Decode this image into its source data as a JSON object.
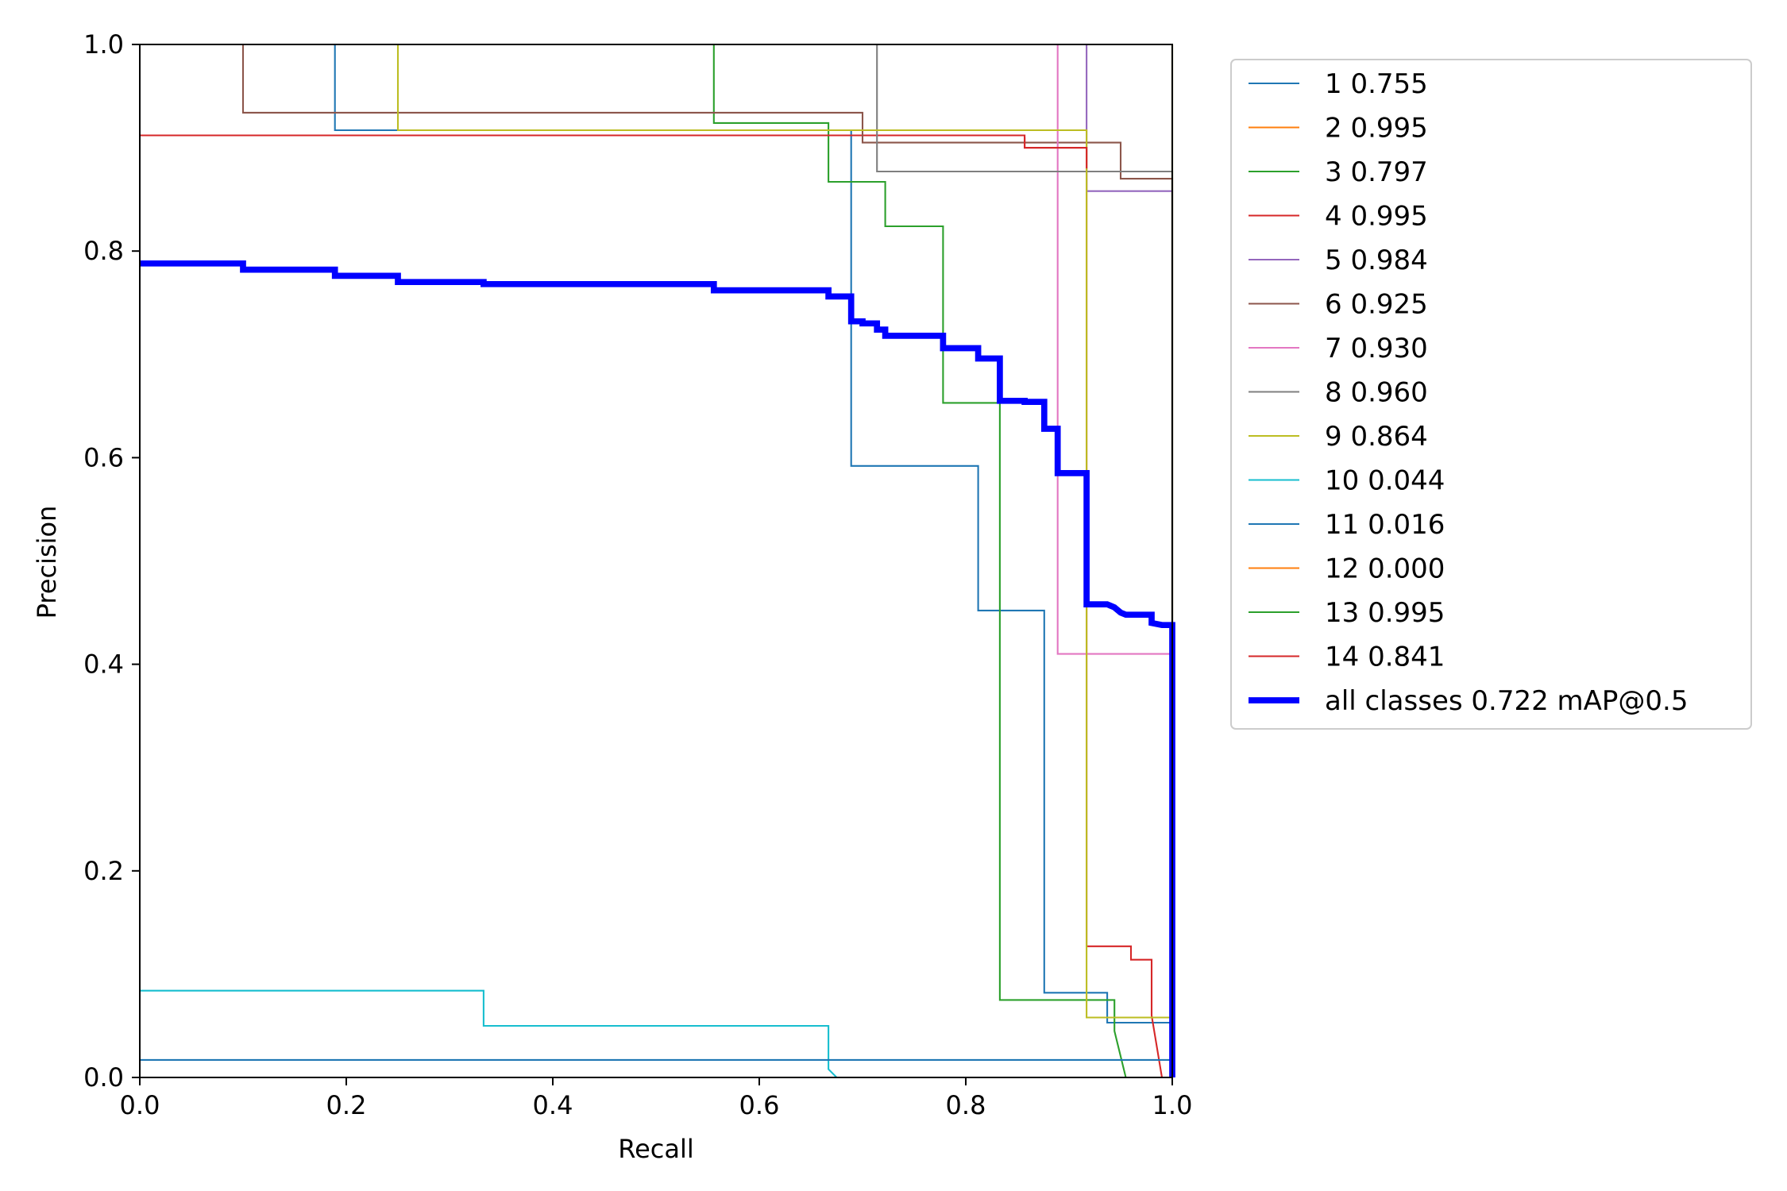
{
  "chart_data": {
    "type": "line",
    "title": "",
    "xlabel": "Recall",
    "ylabel": "Precision",
    "xlim": [
      0,
      1
    ],
    "ylim": [
      0,
      1
    ],
    "grid": false,
    "legend_position": "outside-right-top",
    "x_ticks": [
      "0.0",
      "0.2",
      "0.4",
      "0.6",
      "0.8",
      "1.0"
    ],
    "y_ticks": [
      "0.0",
      "0.2",
      "0.4",
      "0.6",
      "0.8",
      "1.0"
    ],
    "series": [
      {
        "name": "1 0.755",
        "color": "#1f77b4",
        "linewidth": 1.5,
        "points": [
          [
            0.189,
            1.0
          ],
          [
            0.189,
            0.917
          ],
          [
            0.25,
            0.917
          ],
          [
            0.25,
            0.917
          ],
          [
            0.689,
            0.917
          ],
          [
            0.689,
            0.592
          ],
          [
            0.812,
            0.592
          ],
          [
            0.812,
            0.452
          ],
          [
            0.876,
            0.452
          ],
          [
            0.876,
            0.082
          ],
          [
            0.937,
            0.082
          ],
          [
            0.937,
            0.053
          ],
          [
            1.0,
            0.053
          ],
          [
            1.0,
            0.0
          ]
        ]
      },
      {
        "name": "2 0.995",
        "color": "#ff7f0e",
        "linewidth": 1.5,
        "points": [
          [
            1.0,
            1.0
          ],
          [
            1.0,
            0.0
          ]
        ]
      },
      {
        "name": "3 0.797",
        "color": "#2ca02c",
        "linewidth": 1.5,
        "points": [
          [
            0.556,
            1.0
          ],
          [
            0.556,
            0.924
          ],
          [
            0.667,
            0.924
          ],
          [
            0.667,
            0.867
          ],
          [
            0.722,
            0.867
          ],
          [
            0.722,
            0.824
          ],
          [
            0.778,
            0.824
          ],
          [
            0.778,
            0.653
          ],
          [
            0.833,
            0.653
          ],
          [
            0.833,
            0.075
          ],
          [
            0.944,
            0.075
          ],
          [
            0.944,
            0.045
          ],
          [
            0.955,
            0.0
          ]
        ]
      },
      {
        "name": "4 0.995",
        "color": "#d62728",
        "linewidth": 1.5,
        "points": [
          [
            0.0,
            0.912
          ],
          [
            0.857,
            0.912
          ],
          [
            0.857,
            0.9
          ],
          [
            0.917,
            0.9
          ],
          [
            0.917,
            0.127
          ],
          [
            0.96,
            0.127
          ],
          [
            0.96,
            0.114
          ],
          [
            0.98,
            0.114
          ],
          [
            0.98,
            0.06
          ],
          [
            0.99,
            0.0
          ]
        ]
      },
      {
        "name": "5 0.984",
        "color": "#9467bd",
        "linewidth": 1.5,
        "points": [
          [
            0.917,
            1.0
          ],
          [
            0.917,
            0.858
          ],
          [
            1.0,
            0.858
          ],
          [
            1.0,
            0.0
          ]
        ]
      },
      {
        "name": "6 0.925",
        "color": "#8c564b",
        "linewidth": 1.5,
        "points": [
          [
            0.1,
            1.0
          ],
          [
            0.1,
            0.934
          ],
          [
            0.7,
            0.934
          ],
          [
            0.7,
            0.905
          ],
          [
            0.95,
            0.905
          ],
          [
            0.95,
            0.87
          ],
          [
            1.0,
            0.87
          ],
          [
            1.0,
            0.0
          ]
        ]
      },
      {
        "name": "7 0.930",
        "color": "#e377c2",
        "linewidth": 1.5,
        "points": [
          [
            0.889,
            1.0
          ],
          [
            0.889,
            0.41
          ],
          [
            1.0,
            0.41
          ],
          [
            1.0,
            0.0
          ]
        ]
      },
      {
        "name": "8 0.960",
        "color": "#7f7f7f",
        "linewidth": 1.5,
        "points": [
          [
            0.714,
            1.0
          ],
          [
            0.714,
            0.877
          ],
          [
            1.0,
            0.877
          ],
          [
            1.0,
            0.0
          ]
        ]
      },
      {
        "name": "9 0.864",
        "color": "#bcbd22",
        "linewidth": 1.5,
        "points": [
          [
            0.25,
            1.0
          ],
          [
            0.25,
            0.917
          ],
          [
            0.917,
            0.917
          ],
          [
            0.917,
            0.058
          ],
          [
            1.0,
            0.058
          ],
          [
            1.0,
            0.0
          ]
        ]
      },
      {
        "name": "10 0.044",
        "color": "#17becf",
        "linewidth": 1.5,
        "points": [
          [
            0.0,
            0.084
          ],
          [
            0.333,
            0.084
          ],
          [
            0.333,
            0.05
          ],
          [
            0.667,
            0.05
          ],
          [
            0.667,
            0.008
          ],
          [
            0.675,
            0.0
          ]
        ]
      },
      {
        "name": "11 0.016",
        "color": "#1f77b4",
        "linewidth": 1.5,
        "points": [
          [
            0.0,
            0.017
          ],
          [
            1.0,
            0.017
          ],
          [
            1.0,
            0.0
          ]
        ]
      },
      {
        "name": "12 0.000",
        "color": "#ff7f0e",
        "linewidth": 1.5,
        "points": [
          [
            1.0,
            0.0
          ],
          [
            1.0,
            0.0
          ]
        ]
      },
      {
        "name": "13 0.995",
        "color": "#2ca02c",
        "linewidth": 1.5,
        "points": [
          [
            1.0,
            1.0
          ],
          [
            1.0,
            0.0
          ]
        ]
      },
      {
        "name": "14 0.841",
        "color": "#d62728",
        "linewidth": 1.5,
        "points": [
          [
            0.857,
            0.91
          ],
          [
            0.857,
            0.9
          ],
          [
            0.917,
            0.9
          ],
          [
            0.917,
            0.88
          ]
        ]
      },
      {
        "name": "all classes 0.722 mAP@0.5",
        "color": "#0000ff",
        "linewidth": 5.5,
        "points": [
          [
            0.0,
            0.788
          ],
          [
            0.1,
            0.788
          ],
          [
            0.1,
            0.782
          ],
          [
            0.189,
            0.782
          ],
          [
            0.189,
            0.776
          ],
          [
            0.25,
            0.776
          ],
          [
            0.25,
            0.77
          ],
          [
            0.333,
            0.77
          ],
          [
            0.333,
            0.768
          ],
          [
            0.556,
            0.768
          ],
          [
            0.556,
            0.762
          ],
          [
            0.667,
            0.762
          ],
          [
            0.667,
            0.756
          ],
          [
            0.689,
            0.756
          ],
          [
            0.689,
            0.732
          ],
          [
            0.7,
            0.732
          ],
          [
            0.7,
            0.73
          ],
          [
            0.714,
            0.73
          ],
          [
            0.714,
            0.724
          ],
          [
            0.722,
            0.724
          ],
          [
            0.722,
            0.718
          ],
          [
            0.778,
            0.718
          ],
          [
            0.778,
            0.706
          ],
          [
            0.812,
            0.706
          ],
          [
            0.812,
            0.696
          ],
          [
            0.833,
            0.696
          ],
          [
            0.833,
            0.655
          ],
          [
            0.857,
            0.655
          ],
          [
            0.857,
            0.654
          ],
          [
            0.876,
            0.654
          ],
          [
            0.876,
            0.628
          ],
          [
            0.889,
            0.628
          ],
          [
            0.889,
            0.585
          ],
          [
            0.917,
            0.585
          ],
          [
            0.917,
            0.458
          ],
          [
            0.937,
            0.458
          ],
          [
            0.944,
            0.455
          ],
          [
            0.95,
            0.45
          ],
          [
            0.955,
            0.448
          ],
          [
            0.98,
            0.448
          ],
          [
            0.98,
            0.44
          ],
          [
            0.99,
            0.438
          ],
          [
            1.0,
            0.438
          ],
          [
            1.0,
            0.0
          ]
        ]
      }
    ]
  }
}
